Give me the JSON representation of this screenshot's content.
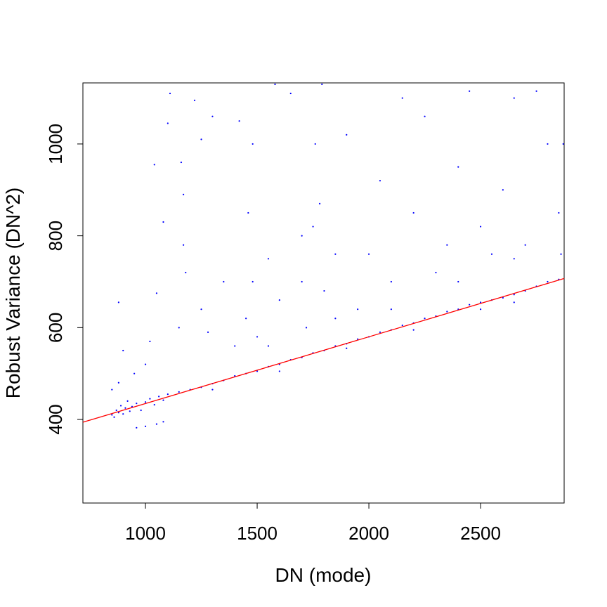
{
  "chart_data": {
    "type": "scatter",
    "x_label": "DN (mode)",
    "y_label": "Robust Variance (DN^2)",
    "xlim": [
      720,
      2874
    ],
    "ylim": [
      218,
      1133
    ],
    "xticks": [
      1000,
      1500,
      2000,
      2500
    ],
    "yticks": [
      400,
      600,
      800,
      1000
    ],
    "series": [
      {
        "color": "#0000ff",
        "x": [
          850,
          860,
          870,
          880,
          890,
          900,
          910,
          920,
          930,
          940,
          960,
          980,
          1000,
          1020,
          1040,
          1060,
          1080,
          1100,
          1150,
          1200,
          1250,
          1300,
          1350,
          1400,
          1450,
          1500,
          1550,
          1600,
          1650,
          1700,
          1750,
          1800,
          1850,
          1900,
          1950,
          2000,
          2050,
          2100,
          2150,
          2200,
          2250,
          2300,
          2350,
          2400,
          2450,
          2500,
          2550,
          2600,
          2650,
          2700,
          2750,
          2800,
          2850,
          960,
          1000,
          1050,
          1080,
          1300,
          1600,
          1900,
          2200,
          2500,
          2650,
          850,
          880,
          900,
          880,
          950,
          1000,
          1020,
          1040,
          1050,
          1080,
          1100,
          1110,
          1150,
          1170,
          1170,
          1180,
          1160,
          1220,
          1250,
          1280,
          1300,
          1350,
          1400,
          1450,
          1460,
          1480,
          1480,
          1500,
          1550,
          1580,
          1600,
          1650,
          1700,
          1720,
          1750,
          1760,
          1780,
          1790,
          1800,
          1850,
          1900,
          1950,
          2000,
          2050,
          2100,
          2150,
          2200,
          2250,
          2300,
          2350,
          2400,
          2450,
          2500,
          2550,
          2600,
          2650,
          2700,
          2750,
          2800,
          2850,
          2860,
          2870,
          2650,
          2400,
          2100,
          1850,
          1700,
          1550,
          1420,
          1250
        ],
        "y": [
          410,
          405,
          420,
          415,
          430,
          412,
          425,
          440,
          418,
          428,
          435,
          420,
          438,
          445,
          432,
          450,
          442,
          455,
          460,
          465,
          470,
          478,
          485,
          495,
          500,
          505,
          515,
          520,
          530,
          535,
          545,
          550,
          560,
          565,
          575,
          580,
          590,
          595,
          605,
          610,
          620,
          625,
          635,
          640,
          650,
          655,
          660,
          665,
          672,
          680,
          690,
          700,
          705,
          382,
          385,
          390,
          395,
          465,
          505,
          555,
          595,
          640,
          655,
          465,
          480,
          550,
          655,
          500,
          520,
          570,
          955,
          675,
          830,
          1045,
          1110,
          600,
          780,
          890,
          720,
          960,
          1095,
          640,
          590,
          1060,
          700,
          560,
          620,
          850,
          1000,
          700,
          580,
          750,
          1130,
          660,
          1110,
          700,
          600,
          820,
          1000,
          870,
          1130,
          680,
          760,
          1020,
          640,
          760,
          920,
          700,
          1100,
          850,
          1060,
          720,
          780,
          950,
          1115,
          820,
          760,
          900,
          1100,
          780,
          1115,
          1000,
          850,
          760,
          1000,
          750,
          700,
          640,
          620,
          800,
          560,
          1050,
          1010
        ]
      }
    ],
    "fit": {
      "type": "line",
      "color": "#ff0000",
      "x": [
        720,
        2874
      ],
      "y": [
        394,
        707
      ]
    }
  }
}
